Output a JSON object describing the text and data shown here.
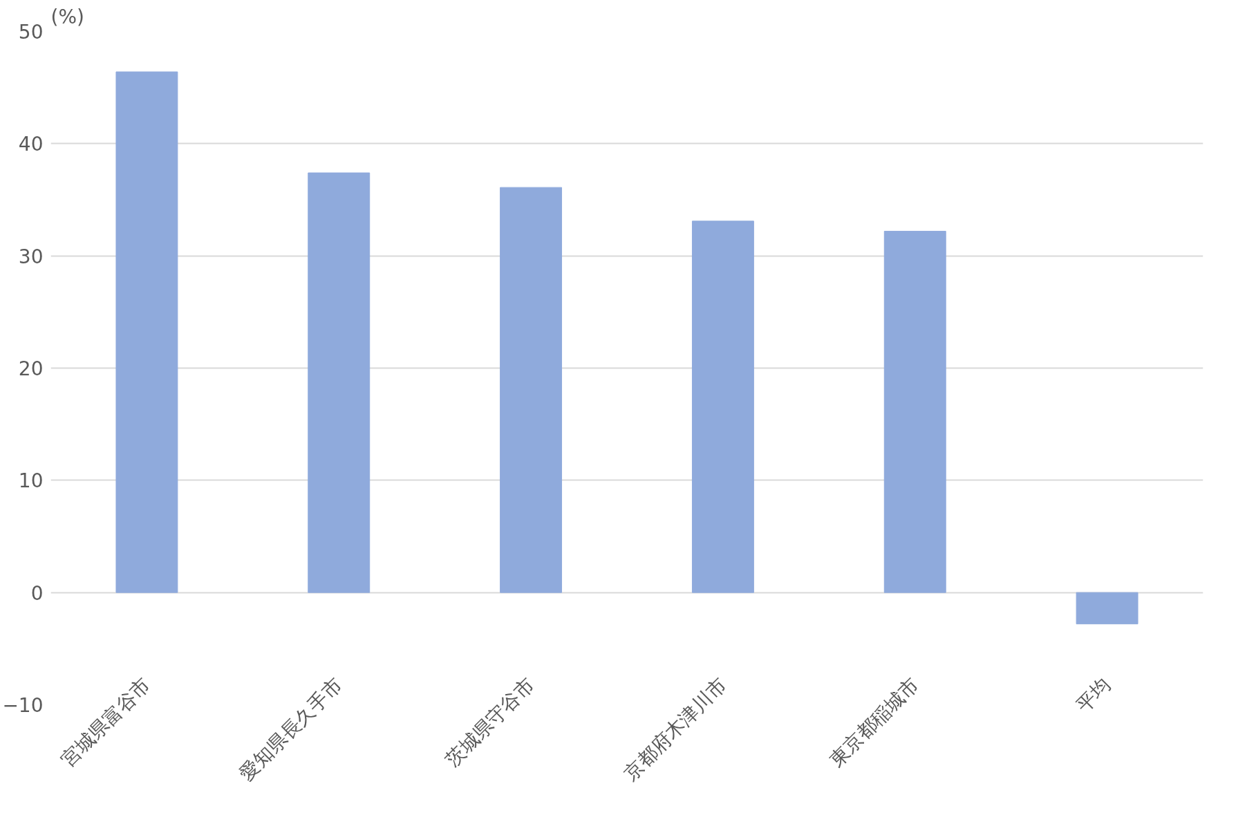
{
  "chart_data": {
    "type": "bar",
    "ylabel": "(%)",
    "categories": [
      "宮城県富谷市",
      "愛知県長久手市",
      "茨城県守谷市",
      "京都府木津川市",
      "東京都稲城市",
      "平均"
    ],
    "values": [
      46.4,
      37.4,
      36.1,
      33.1,
      32.2,
      -2.8
    ],
    "color": "#8faadc",
    "ylim": [
      -10,
      50
    ],
    "yticks": [
      -10,
      0,
      10,
      20,
      30,
      40,
      50
    ],
    "grid": "y"
  }
}
